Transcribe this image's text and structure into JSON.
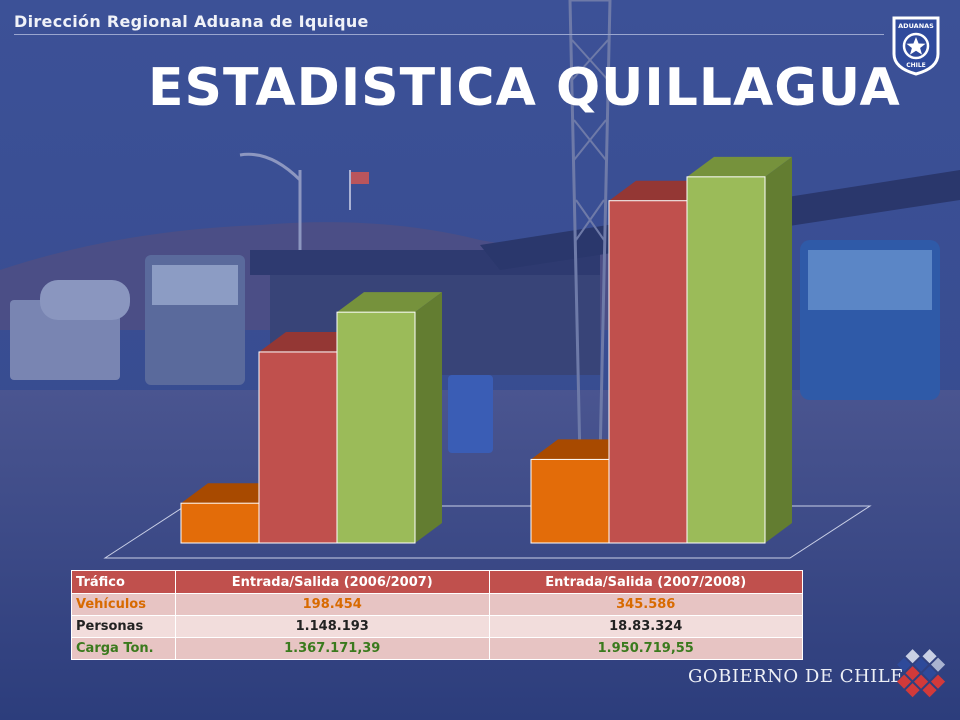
{
  "header": {
    "org": "Dirección Regional Aduana de Iquique",
    "title": "ESTADISTICA QUILLAGUA"
  },
  "logo": {
    "top_text": "ADUANAS",
    "bottom_text": "CHILE"
  },
  "colors": {
    "background": "#3b4f93",
    "series_orange": "#e36c09",
    "series_red": "#c0504d",
    "series_green": "#9bbb59",
    "table_header": "#c0504d",
    "row_pink": "#e7c4c3",
    "row_light": "#f2dddc"
  },
  "chart_data": {
    "type": "bar",
    "categories": [
      "",
      ""
    ],
    "series": [
      {
        "values": [
          10,
          21
        ]
      },
      {
        "values": [
          48,
          86
        ]
      },
      {
        "values": [
          58,
          92
        ]
      }
    ],
    "ylim": [
      0,
      100
    ],
    "grid": false,
    "legend": "none"
  },
  "table": {
    "headers": [
      "Tráfico",
      "Entrada/Salida (2006/2007)",
      "Entrada/Salida (2007/2008)"
    ],
    "rows": [
      [
        "Vehículos",
        "198.454",
        "345.586"
      ],
      [
        "Personas",
        "1.148.193",
        "18.83.324"
      ],
      [
        "Carga Ton.",
        "1.367.171,39",
        "1.950.719,55"
      ]
    ]
  },
  "footer": {
    "brand": "GOBIERNO DE CHILE"
  }
}
